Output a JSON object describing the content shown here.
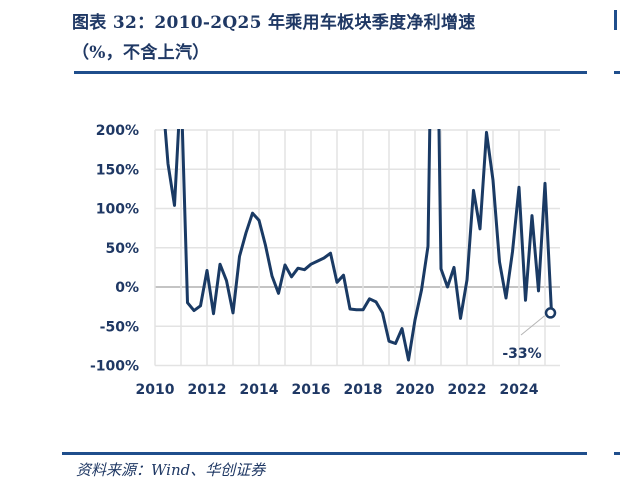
{
  "header": {
    "title_line1": "图表 32：2010-2Q25 年乘用车板块季度净利增速",
    "title_line2": "（%，不含上汽）"
  },
  "footer": {
    "source": "资料来源：Wind、华创证券"
  },
  "colors": {
    "line": "#1a3a64",
    "text": "#1f3864",
    "rule": "#1f4e8c",
    "grid": "#e3e3e3",
    "zero_line": "#a0a0a0"
  },
  "chart_data": {
    "type": "line",
    "title": "2010-2Q25 年乘用车板块季度净利增速（%，不含上汽）",
    "xlabel": "",
    "ylabel": "",
    "ylim": [
      -100,
      200
    ],
    "yticks": [
      "200%",
      "150%",
      "100%",
      "50%",
      "0%",
      "-50%",
      "-100%"
    ],
    "ytick_values": [
      200,
      150,
      100,
      50,
      0,
      -50,
      -100
    ],
    "xticks": [
      "2010",
      "2012",
      "2014",
      "2016",
      "2018",
      "2020",
      "2022",
      "2024"
    ],
    "grid": true,
    "legend": null,
    "annotation": {
      "label": "-33%",
      "x": 2025.25,
      "y": -33
    },
    "series": [
      {
        "name": "乘用车板块季度净利增速",
        "x": [
          2010.25,
          2010.5,
          2010.75,
          2011.0,
          2011.25,
          2011.5,
          2011.75,
          2012.0,
          2012.25,
          2012.5,
          2012.75,
          2013.0,
          2013.25,
          2013.5,
          2013.75,
          2014.0,
          2014.25,
          2014.5,
          2014.75,
          2015.0,
          2015.25,
          2015.5,
          2015.75,
          2016.0,
          2016.25,
          2016.5,
          2016.75,
          2017.0,
          2017.25,
          2017.5,
          2017.75,
          2018.0,
          2018.25,
          2018.5,
          2018.75,
          2019.0,
          2019.25,
          2019.5,
          2019.75,
          2020.0,
          2020.25,
          2020.5,
          2020.75,
          2021.0,
          2021.25,
          2021.5,
          2021.75,
          2022.0,
          2022.25,
          2022.5,
          2022.75,
          2023.0,
          2023.25,
          2023.5,
          2023.75,
          2024.0,
          2024.25,
          2024.5,
          2024.75,
          2025.0,
          2025.25
        ],
        "values": [
          260,
          157,
          104,
          260,
          -20,
          -30,
          -24,
          21,
          -34,
          29,
          8,
          -33,
          39,
          69,
          94,
          85,
          53,
          14,
          -8,
          28,
          13,
          24,
          22,
          29,
          33,
          37,
          43,
          6,
          15,
          -28,
          -29,
          -29,
          -15,
          -19,
          -33,
          -69,
          -72,
          -53,
          -93,
          -42,
          -4,
          52,
          600,
          23,
          0,
          25,
          -40,
          9,
          123,
          74,
          197,
          136,
          32,
          -14,
          45,
          127,
          -17,
          91,
          -5,
          132,
          -33
        ],
        "note": "Values above 200% are clipped at top of chart; 2010Q1/2011Q1/2020Q4 exceed axis range"
      }
    ]
  }
}
